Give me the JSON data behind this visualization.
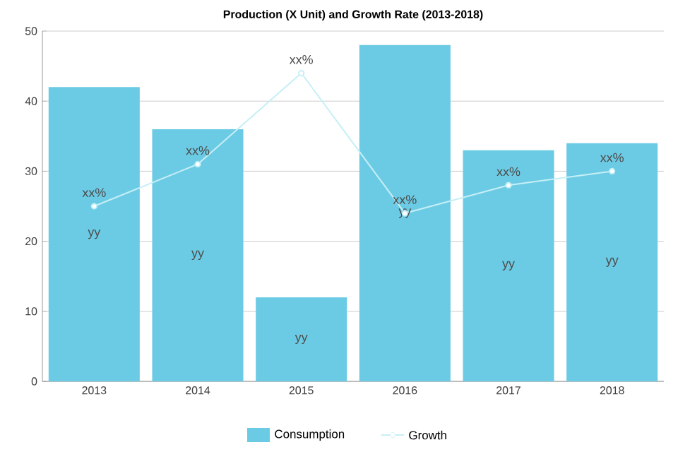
{
  "chart_data": {
    "type": "bar",
    "title": "Production (X Unit) and Growth Rate (2013-2018)",
    "categories": [
      "2013",
      "2014",
      "2015",
      "2016",
      "2017",
      "2018"
    ],
    "series": [
      {
        "name": "Consumption",
        "color": "#6ccbe4",
        "values": [
          42,
          36,
          12,
          48,
          33,
          34
        ],
        "value_labels": [
          "yy",
          "yy",
          "yy",
          "yy",
          "yy",
          "yy"
        ]
      },
      {
        "name": "Growth",
        "type": "line",
        "color": "#c6eff6",
        "values": [
          25,
          31,
          44,
          24,
          28,
          30
        ],
        "value_labels": [
          "xx%",
          "xx%",
          "xx%",
          "xx%",
          "xx%",
          "xx%"
        ]
      }
    ],
    "ylim": [
      0,
      50
    ],
    "yticks": [
      0,
      10,
      20,
      30,
      40,
      50
    ],
    "grid": "y",
    "legend": "bottom",
    "marker": "circle",
    "line_style": "solid"
  }
}
